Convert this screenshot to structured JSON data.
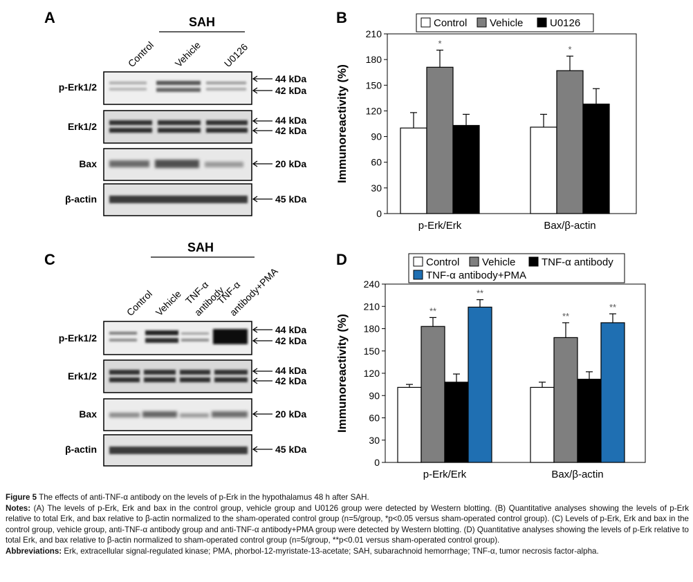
{
  "figure": {
    "panels": {
      "A": "A",
      "B": "B",
      "C": "C",
      "D": "D"
    },
    "blot_A": {
      "group_label": "SAH",
      "lanes": [
        "Control",
        "Vehicle",
        "U0126"
      ],
      "rows": [
        {
          "label": "p-Erk1/2",
          "kda": [
            "44 kDa",
            "42 kDa"
          ]
        },
        {
          "label": "Erk1/2",
          "kda": [
            "44 kDa",
            "42 kDa"
          ]
        },
        {
          "label": "Bax",
          "kda": [
            "20 kDa"
          ]
        },
        {
          "label": "β-actin",
          "kda": [
            "45 kDa"
          ]
        }
      ]
    },
    "blot_C": {
      "group_label": "SAH",
      "lanes": [
        "Control",
        "Vehicle",
        "TNF-α",
        "antibody",
        "TNF-α",
        "antibody+PMA"
      ],
      "rows": [
        {
          "label": "p-Erk1/2",
          "kda": [
            "44 kDa",
            "42 kDa"
          ]
        },
        {
          "label": "Erk1/2",
          "kda": [
            "44 kDa",
            "42 kDa"
          ]
        },
        {
          "label": "Bax",
          "kda": [
            "20 kDa"
          ]
        },
        {
          "label": "β-actin",
          "kda": [
            "45 kDa"
          ]
        }
      ]
    }
  },
  "chart_data": [
    {
      "panel": "B",
      "type": "bar",
      "title": "",
      "xlabel": "",
      "ylabel": "Immunoreactivity (%)",
      "ylim": [
        0,
        210
      ],
      "yticks": [
        0,
        30,
        60,
        90,
        120,
        150,
        180,
        210
      ],
      "categories": [
        "p-Erk/Erk",
        "Bax/β-actin"
      ],
      "series": [
        {
          "name": "Control",
          "color": "#ffffff",
          "values": [
            100,
            101
          ],
          "errors": [
            18,
            15
          ],
          "sig": [
            "",
            ""
          ]
        },
        {
          "name": "Vehicle",
          "color": "#7f7f7f",
          "values": [
            171,
            167
          ],
          "errors": [
            20,
            17
          ],
          "sig": [
            "*",
            "*"
          ]
        },
        {
          "name": "U0126",
          "color": "#000000",
          "values": [
            103,
            128
          ],
          "errors": [
            13,
            18
          ],
          "sig": [
            "",
            ""
          ]
        }
      ],
      "legend_position": "top"
    },
    {
      "panel": "D",
      "type": "bar",
      "title": "",
      "xlabel": "",
      "ylabel": "Immunoreactivity (%)",
      "ylim": [
        0,
        240
      ],
      "yticks": [
        0,
        30,
        60,
        90,
        120,
        150,
        180,
        210,
        240
      ],
      "categories": [
        "p-Erk/Erk",
        "Bax/β-actin"
      ],
      "series": [
        {
          "name": "Control",
          "color": "#ffffff",
          "values": [
            101,
            101
          ],
          "errors": [
            4,
            7
          ],
          "sig": [
            "",
            ""
          ]
        },
        {
          "name": "Vehicle",
          "color": "#7f7f7f",
          "values": [
            183,
            168
          ],
          "errors": [
            12,
            20
          ],
          "sig": [
            "**",
            "**"
          ]
        },
        {
          "name": "TNF-α antibody",
          "color": "#000000",
          "values": [
            108,
            112
          ],
          "errors": [
            11,
            10
          ],
          "sig": [
            "",
            ""
          ]
        },
        {
          "name": "TNF-α antibody+PMA",
          "color": "#1f6fb2",
          "values": [
            209,
            188
          ],
          "errors": [
            10,
            12
          ],
          "sig": [
            "**",
            "**"
          ]
        }
      ],
      "legend_position": "top"
    }
  ],
  "caption": {
    "title_label": "Figure 5",
    "title_text": " The effects of anti-TNF-α antibody on the levels of p-Erk in the hypothalamus 48 h after SAH.",
    "notes_label": "Notes:",
    "notes_text": " (A) The levels of p-Erk, Erk and bax in the control group, vehicle group and U0126 group were detected by Western blotting. (B) Quantitative analyses showing the levels of p-Erk relative to total Erk, and bax relative to β-actin normalized to the sham-operated control group (n=5/group, *p<0.05 versus sham-operated control group). (C) Levels of p-Erk, Erk and bax in the control group, vehicle group, anti-TNF-α antibody group and anti-TNF-α antibody+PMA group were detected by Western blotting. (D) Quantitative analyses showing the levels of p-Erk relative to total Erk, and bax relative to β-actin normalized to sham-operated control group (n=5/group, **p<0.01 versus sham-operated control group).",
    "abbr_label": "Abbreviations:",
    "abbr_text": " Erk, extracellular signal-regulated kinase; PMA, phorbol-12-myristate-13-acetate; SAH, subarachnoid hemorrhage; TNF-α, tumor necrosis factor-alpha."
  }
}
